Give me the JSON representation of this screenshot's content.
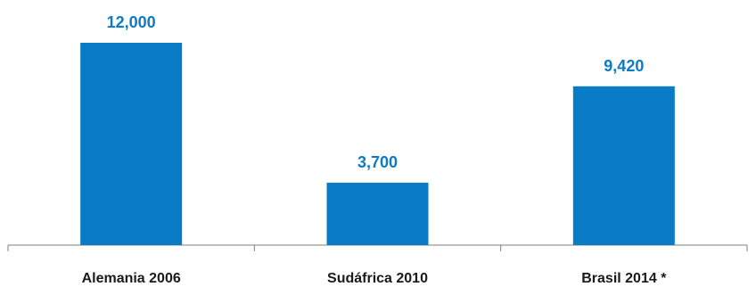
{
  "chart_data": {
    "type": "bar",
    "categories": [
      "Alemania 2006",
      "Sudáfrica 2010",
      "Brasil 2014 *"
    ],
    "values": [
      12000,
      3700,
      9420
    ],
    "value_labels": [
      "12,000",
      "3,700",
      "9,420"
    ],
    "title": "",
    "xlabel": "",
    "ylabel": "",
    "ylim": [
      0,
      12000
    ],
    "grid": false,
    "legend": "none",
    "bar_color": "#0a7bc6",
    "axis_color": "#7f7f7f"
  }
}
